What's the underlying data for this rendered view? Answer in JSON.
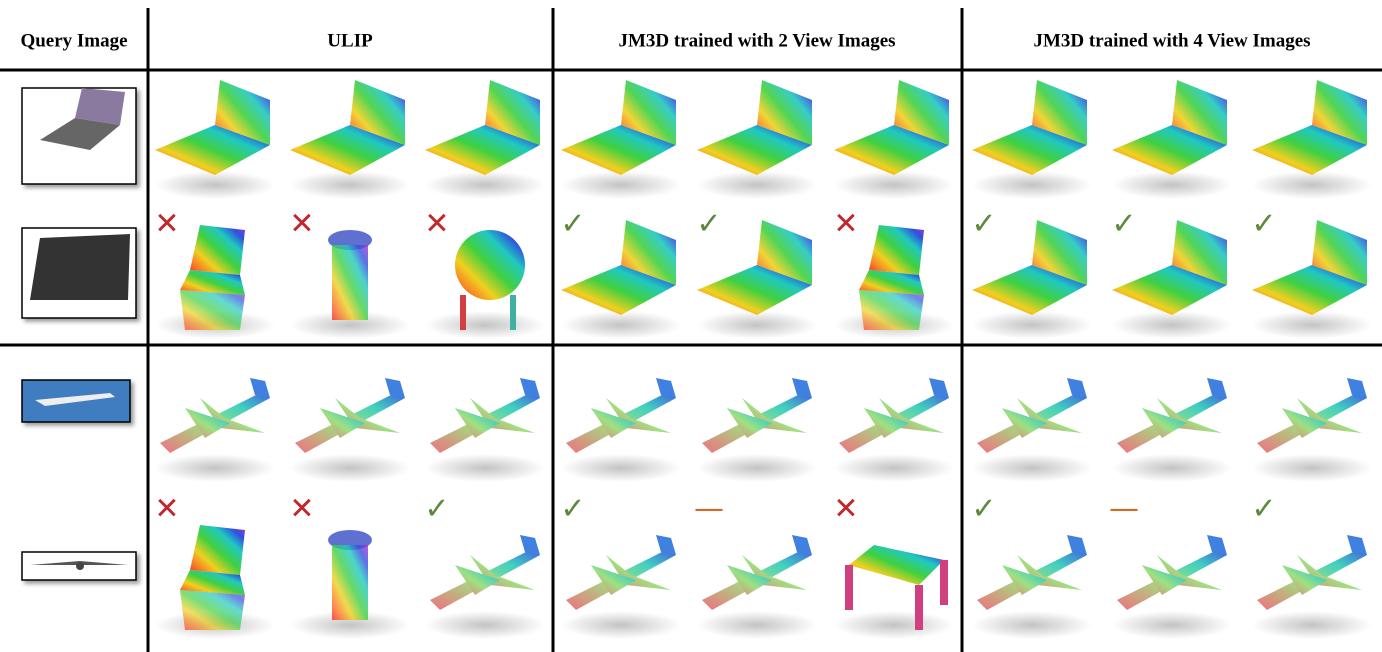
{
  "header": {
    "columns": [
      "Query Image",
      "ULIP",
      "JM3D trained with 2 View Images",
      "JM3D trained with 4 View Images"
    ]
  },
  "groups": [
    {
      "marks": [
        {
          "symbol": "✕",
          "color": "#c0282d"
        },
        {
          "symbol": "✕",
          "color": "#c0282d"
        },
        {
          "symbol": "✕",
          "color": "#c0282d"
        },
        {
          "symbol": "✓",
          "color": "#5b8a3c"
        },
        {
          "symbol": "✓",
          "color": "#5b8a3c"
        },
        {
          "symbol": "✕",
          "color": "#c0282d"
        },
        {
          "symbol": "✓",
          "color": "#5b8a3c"
        },
        {
          "symbol": "✓",
          "color": "#5b8a3c"
        },
        {
          "symbol": "✓",
          "color": "#5b8a3c"
        }
      ]
    },
    {
      "marks": [
        {
          "symbol": "✕",
          "color": "#c0282d"
        },
        {
          "symbol": "✕",
          "color": "#c0282d"
        },
        {
          "symbol": "✓",
          "color": "#5b8a3c"
        },
        {
          "symbol": "✓",
          "color": "#5b8a3c"
        },
        {
          "symbol": "—",
          "color": "#d2691e"
        },
        {
          "symbol": "✕",
          "color": "#c0282d"
        },
        {
          "symbol": "✓",
          "color": "#5b8a3c"
        },
        {
          "symbol": "—",
          "color": "#d2691e"
        },
        {
          "symbol": "✓",
          "color": "#5b8a3c"
        }
      ]
    }
  ]
}
